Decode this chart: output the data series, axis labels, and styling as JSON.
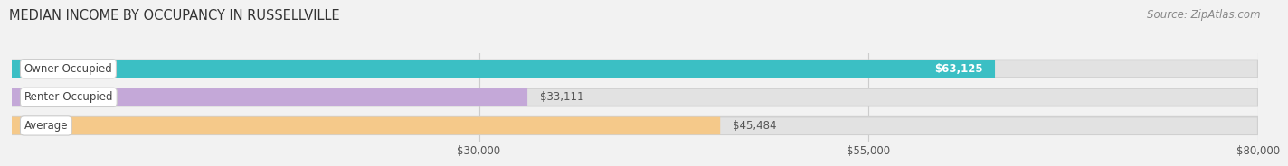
{
  "title": "MEDIAN INCOME BY OCCUPANCY IN RUSSELLVILLE",
  "source": "Source: ZipAtlas.com",
  "categories": [
    "Owner-Occupied",
    "Renter-Occupied",
    "Average"
  ],
  "values": [
    63125,
    33111,
    45484
  ],
  "bar_colors": [
    "#3bbfc4",
    "#c4a8d8",
    "#f5c98a"
  ],
  "value_labels": [
    "$63,125",
    "$33,111",
    "$45,484"
  ],
  "value_label_inside": [
    true,
    false,
    false
  ],
  "xlim_start": 0,
  "xlim_end": 80000,
  "xticks": [
    30000,
    55000,
    80000
  ],
  "xtick_labels": [
    "$30,000",
    "$55,000",
    "$80,000"
  ],
  "bar_height": 0.62,
  "background_color": "#f2f2f2",
  "bar_bg_color": "#e2e2e2",
  "title_fontsize": 10.5,
  "source_fontsize": 8.5,
  "label_fontsize": 8.5,
  "value_fontsize": 8.5,
  "tick_fontsize": 8.5,
  "grid_color": "#cccccc",
  "label_pill_color": "#ffffff",
  "label_text_color": "#444444",
  "value_inside_color": "#ffffff",
  "value_outside_color": "#555555"
}
